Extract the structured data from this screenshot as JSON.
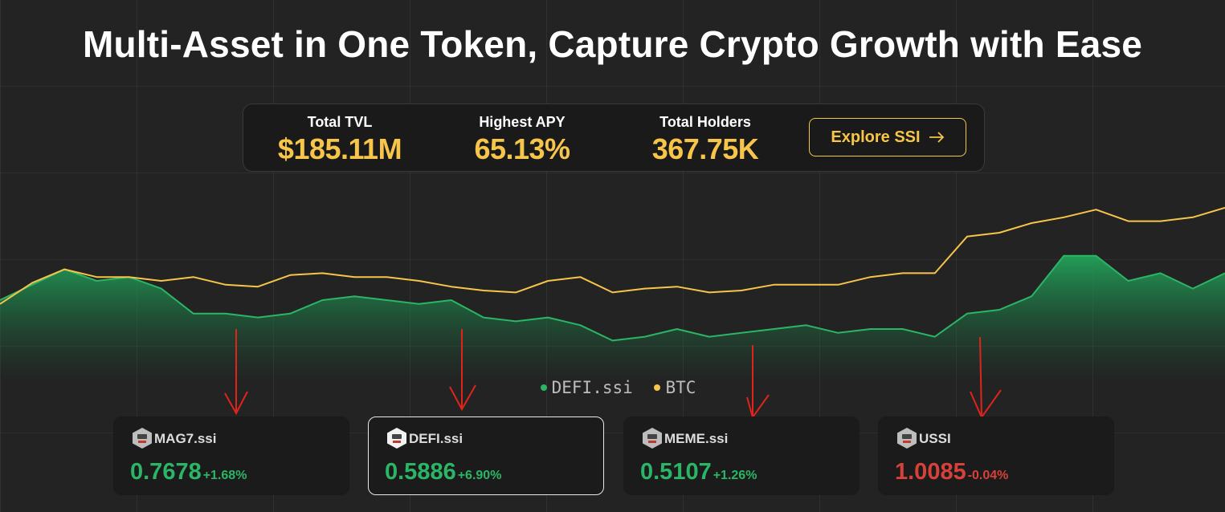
{
  "header": {
    "title": "Multi-Asset in One Token, Capture Crypto Growth with Ease"
  },
  "stats": [
    {
      "label": "Total TVL",
      "value": "$185.11M"
    },
    {
      "label": "Highest APY",
      "value": "65.13%"
    },
    {
      "label": "Total Holders",
      "value": "367.75K"
    }
  ],
  "cta": "Explore SSI",
  "chart_data": {
    "type": "area",
    "ylim": [
      0,
      100
    ],
    "series": [
      {
        "name": "DEFI.ssi",
        "color": "#2bb566",
        "values": [
          40,
          48,
          56,
          50,
          52,
          46,
          33,
          33,
          31,
          33,
          40,
          42,
          40,
          38,
          40,
          31,
          29,
          31,
          27,
          19,
          21,
          25,
          21,
          23,
          25,
          27,
          23,
          25,
          25,
          21,
          33,
          35,
          42,
          63,
          63,
          50,
          54,
          46,
          54
        ]
      },
      {
        "name": "BTC",
        "color": "#f6c549",
        "values": [
          38,
          49,
          56,
          52,
          52,
          50,
          52,
          48,
          47,
          53,
          54,
          52,
          52,
          50,
          47,
          45,
          44,
          50,
          52,
          44,
          46,
          47,
          44,
          45,
          48,
          48,
          48,
          52,
          54,
          54,
          73,
          75,
          80,
          83,
          87,
          81,
          81,
          83,
          88
        ]
      }
    ]
  },
  "cards": [
    {
      "name": "MAG7.ssi",
      "price": "0.7678",
      "change": "+1.68%"
    },
    {
      "name": "DEFI.ssi",
      "price": "0.5886",
      "change": "+6.90%"
    },
    {
      "name": "MEME.ssi",
      "price": "0.5107",
      "change": "+1.26%"
    },
    {
      "name": "USSI",
      "price": "1.0085",
      "change": "-0.04%"
    }
  ]
}
